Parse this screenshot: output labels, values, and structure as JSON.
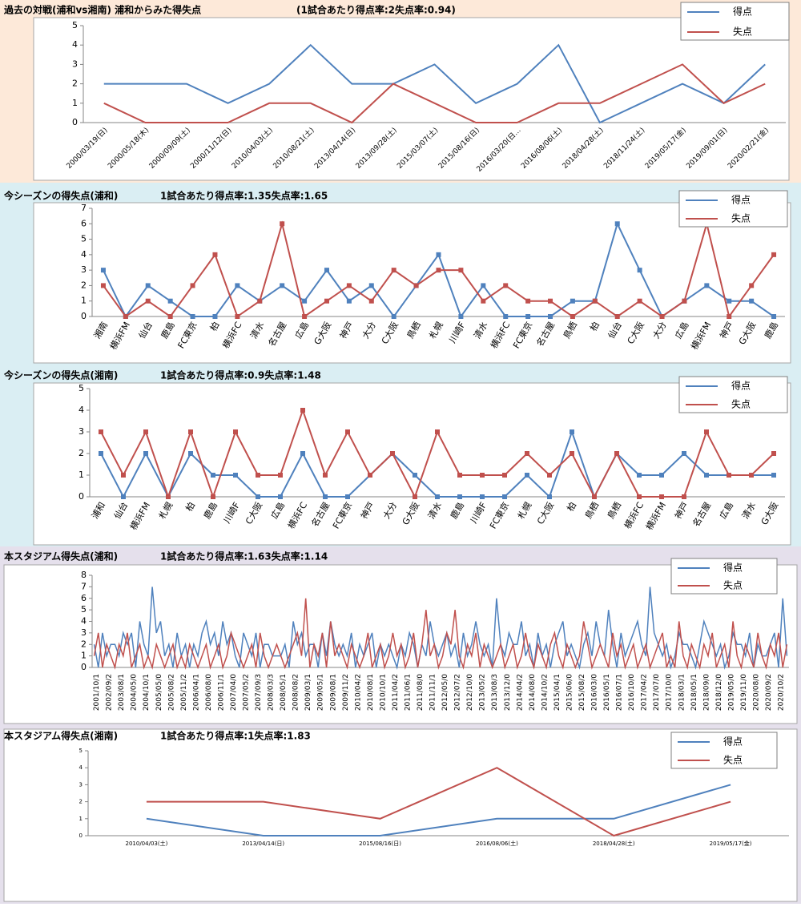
{
  "chart_data": [
    {
      "type": "line",
      "title": "過去の対戦(浦和vs湘南) 浦和からみた得失点",
      "subtitle": "(1試合あたり得点率:2失点率:0.94)",
      "categories": [
        "2000/03/19(日)",
        "2000/05/18(木)",
        "2000/09/09(土)",
        "2000/11/12(日)",
        "2010/04/03(土)",
        "2010/08/21(土)",
        "2013/04/14(日)",
        "2013/09/28(土)",
        "2015/03/07(土)",
        "2015/08/16(日)",
        "2016/03/20(日…",
        "2016/08/06(土)",
        "2018/04/28(土)",
        "2018/11/24(土)",
        "2019/05/17(金)",
        "2019/09/01(日)",
        "2020/02/21(金)"
      ],
      "series": [
        {
          "name": "得点",
          "color": "#4f81bd",
          "values": [
            2,
            2,
            2,
            1,
            2,
            4,
            2,
            2,
            3,
            1,
            2,
            4,
            0,
            1,
            2,
            1,
            3
          ]
        },
        {
          "name": "失点",
          "color": "#c0504d",
          "values": [
            1,
            0,
            0,
            0,
            1,
            1,
            0,
            2,
            1,
            0,
            0,
            1,
            1,
            2,
            3,
            1,
            2
          ]
        }
      ],
      "ylim": [
        0,
        5
      ],
      "yticks": [
        0,
        1,
        2,
        3,
        4,
        5
      ],
      "markers": false
    },
    {
      "type": "line",
      "title": "今シーズンの得失点(浦和)",
      "subtitle": "1試合あたり得点率:1.35失点率:1.65",
      "categories": [
        "湘南",
        "横浜FM",
        "仙台",
        "鹿島",
        "FC東京",
        "柏",
        "横浜FC",
        "清水",
        "名古屋",
        "広島",
        "G大阪",
        "神戸",
        "大分",
        "C大阪",
        "鳥栖",
        "札幌",
        "川崎F",
        "清水",
        "横浜FC",
        "FC東京",
        "名古屋",
        "鳥栖",
        "柏",
        "仙台",
        "C大阪",
        "大分",
        "広島",
        "横浜FM",
        "神戸",
        "G大阪",
        "鹿島"
      ],
      "series": [
        {
          "name": "得点",
          "color": "#4f81bd",
          "values": [
            3,
            0,
            2,
            1,
            0,
            0,
            2,
            1,
            2,
            1,
            3,
            1,
            2,
            0,
            2,
            4,
            0,
            2,
            0,
            0,
            0,
            1,
            1,
            6,
            3,
            0,
            1,
            2,
            1,
            1,
            0
          ]
        },
        {
          "name": "失点",
          "color": "#c0504d",
          "values": [
            2,
            0,
            1,
            0,
            2,
            4,
            0,
            1,
            6,
            0,
            1,
            2,
            1,
            3,
            2,
            3,
            3,
            1,
            2,
            1,
            1,
            0,
            1,
            0,
            1,
            0,
            1,
            6,
            0,
            2,
            4
          ]
        }
      ],
      "ylim": [
        0,
        7
      ],
      "yticks": [
        0,
        1,
        2,
        3,
        4,
        5,
        6,
        7
      ],
      "markers": true
    },
    {
      "type": "line",
      "title": "今シーズンの得失点(湘南)",
      "subtitle": "1試合あたり得点率:0.9失点率:1.48",
      "categories": [
        "浦和",
        "仙台",
        "横浜FM",
        "札幌",
        "柏",
        "鹿島",
        "川崎F",
        "C大阪",
        "広島",
        "横浜FC",
        "名古屋",
        "FC東京",
        "神戸",
        "大分",
        "G大阪",
        "清水",
        "鹿島",
        "川崎F",
        "FC東京",
        "札幌",
        "C大阪",
        "柏",
        "鳥栖",
        "鳥栖",
        "横浜FC",
        "横浜FM",
        "神戸",
        "名古屋",
        "広島",
        "清水",
        "G大阪"
      ],
      "series": [
        {
          "name": "得点",
          "color": "#4f81bd",
          "values": [
            2,
            0,
            2,
            0,
            2,
            1,
            1,
            0,
            0,
            2,
            0,
            0,
            1,
            2,
            1,
            0,
            0,
            0,
            0,
            1,
            0,
            3,
            0,
            2,
            1,
            1,
            2,
            1,
            1,
            1,
            1
          ]
        },
        {
          "name": "失点",
          "color": "#c0504d",
          "values": [
            3,
            1,
            3,
            0,
            3,
            0,
            3,
            1,
            1,
            4,
            1,
            3,
            1,
            2,
            0,
            3,
            1,
            1,
            1,
            2,
            1,
            2,
            0,
            2,
            0,
            0,
            0,
            3,
            1,
            1,
            2
          ]
        }
      ],
      "ylim": [
        0,
        5
      ],
      "yticks": [
        0,
        1,
        2,
        3,
        4,
        5
      ],
      "markers": true
    },
    {
      "type": "line",
      "title": "本スタジアム得失点(浦和)",
      "subtitle": "1試合あたり得点率:1.63失点率:1.14",
      "categories": [
        "2001/10/1",
        null,
        null,
        "2002/09/2",
        null,
        null,
        "2003/08/1",
        null,
        null,
        "2004/05/0",
        null,
        null,
        "2004/10/1",
        null,
        null,
        "2005/05/0",
        null,
        null,
        "2005/08/2",
        null,
        null,
        "2005/11/2",
        null,
        null,
        "2006/04/1",
        null,
        null,
        "2006/08/0",
        null,
        null,
        "2006/11/1",
        null,
        null,
        "2007/04/0",
        null,
        null,
        "2007/05/2",
        null,
        null,
        "2007/09/3",
        null,
        null,
        "2008/03/3",
        null,
        null,
        "2008/05/1",
        null,
        null,
        "2008/08/2",
        null,
        null,
        "2009/03/1",
        null,
        null,
        "2009/05/1",
        null,
        null,
        "2009/08/1",
        null,
        null,
        "2009/11/2",
        null,
        null,
        "2010/04/2",
        null,
        null,
        "2010/08/1",
        null,
        null,
        "2010/10/1",
        null,
        null,
        "2011/04/2",
        null,
        null,
        "2011/06/1",
        null,
        null,
        "2011/08/0",
        null,
        null,
        "2011/11/1",
        null,
        null,
        "2012/05/0",
        null,
        null,
        "2012/07/2",
        null,
        null,
        "2012/10/0",
        null,
        null,
        "2013/05/2",
        null,
        null,
        "2013/08/3",
        null,
        null,
        "2013/12/0",
        null,
        null,
        "2014/04/2",
        null,
        null,
        "2014/08/0",
        null,
        null,
        "2014/10/2",
        null,
        null,
        "2015/04/1",
        null,
        null,
        "2015/06/0",
        null,
        null,
        "2015/08/2",
        null,
        null,
        "2016/03/0",
        null,
        null,
        "2016/05/1",
        null,
        null,
        "2016/07/1",
        null,
        null,
        "2016/10/0",
        null,
        null,
        "2017/04/2",
        null,
        null,
        "2017/07/0",
        null,
        null,
        "2017/10/0",
        null,
        null,
        "2018/03/1",
        null,
        null,
        "2018/05/1",
        null,
        null,
        "2018/09/0",
        null,
        null,
        "2018/12/0",
        null,
        null,
        "2019/05/0",
        null,
        null,
        "2019/11/0",
        null,
        null,
        "2020/08/0",
        null,
        null,
        "2020/09/2",
        null,
        null,
        "2020/10/2",
        null,
        null
      ],
      "series": [
        {
          "name": "得点",
          "color": "#4f81bd",
          "values": [
            2,
            0,
            3,
            1,
            2,
            2,
            1,
            3,
            2,
            3,
            0,
            4,
            2,
            1,
            7,
            3,
            4,
            1,
            2,
            0,
            3,
            1,
            2,
            0,
            2,
            1,
            3,
            4,
            2,
            3,
            1,
            4,
            2,
            3,
            1,
            0,
            3,
            2,
            1,
            3,
            0,
            2,
            2,
            1,
            1,
            1,
            2,
            0,
            4,
            2,
            3,
            1,
            2,
            2,
            0,
            3,
            1,
            4,
            2,
            1,
            2,
            1,
            3,
            0,
            2,
            1,
            2,
            3,
            0,
            2,
            1,
            2,
            1,
            0,
            2,
            1,
            3,
            2,
            0,
            2,
            1,
            4,
            2,
            1,
            2,
            3,
            1,
            2,
            0,
            3,
            1,
            2,
            4,
            2,
            1,
            2,
            0,
            6,
            2,
            1,
            3,
            2,
            2,
            4,
            1,
            2,
            0,
            3,
            1,
            2,
            0,
            2,
            3,
            4,
            1,
            2,
            1,
            0,
            2,
            3,
            1,
            4,
            2,
            1,
            5,
            2,
            0,
            3,
            1,
            2,
            3,
            4,
            2,
            1,
            7,
            3,
            2,
            1,
            2,
            0,
            1,
            3,
            2,
            2,
            1,
            0,
            2,
            4,
            3,
            2,
            1,
            2,
            0,
            1,
            3,
            2,
            2,
            1,
            3,
            0,
            2,
            1,
            1,
            2,
            3,
            0,
            6,
            1
          ]
        },
        {
          "name": "失点",
          "color": "#c0504d",
          "values": [
            1,
            3,
            0,
            2,
            1,
            0,
            2,
            1,
            3,
            0,
            1,
            2,
            0,
            1,
            0,
            2,
            1,
            0,
            1,
            2,
            0,
            1,
            0,
            2,
            1,
            0,
            1,
            2,
            0,
            1,
            2,
            0,
            1,
            3,
            2,
            1,
            0,
            1,
            2,
            0,
            3,
            1,
            0,
            1,
            2,
            1,
            0,
            1,
            2,
            3,
            1,
            6,
            0,
            2,
            1,
            3,
            0,
            4,
            1,
            2,
            1,
            0,
            2,
            1,
            0,
            1,
            3,
            0,
            1,
            2,
            0,
            1,
            3,
            1,
            2,
            0,
            1,
            3,
            0,
            2,
            5,
            1,
            2,
            0,
            1,
            3,
            2,
            5,
            1,
            0,
            2,
            1,
            3,
            0,
            2,
            1,
            0,
            1,
            2,
            0,
            1,
            2,
            0,
            1,
            3,
            1,
            0,
            2,
            1,
            0,
            2,
            3,
            1,
            0,
            2,
            1,
            0,
            1,
            4,
            2,
            0,
            1,
            2,
            1,
            0,
            3,
            1,
            2,
            0,
            1,
            2,
            0,
            1,
            2,
            0,
            1,
            2,
            3,
            0,
            1,
            0,
            4,
            1,
            0,
            2,
            1,
            0,
            2,
            1,
            3,
            0,
            1,
            2,
            0,
            4,
            1,
            0,
            2,
            1,
            0,
            3,
            1,
            0,
            2,
            1,
            3,
            0,
            2
          ]
        }
      ],
      "ylim": [
        0,
        8
      ],
      "yticks": [
        0,
        1,
        2,
        3,
        4,
        5,
        6,
        7,
        8
      ],
      "markers": false
    },
    {
      "type": "line",
      "title": "本スタジアム得失点(湘南)",
      "subtitle": "1試合あたり得点率:1失点率:1.83",
      "categories": [
        "2010/04/03(土)",
        "2013/04/14(日)",
        "2015/08/16(日)",
        "2016/08/06(土)",
        "2018/04/28(土)",
        "2019/05/17(金)"
      ],
      "series": [
        {
          "name": "得点",
          "color": "#4f81bd",
          "values": [
            1,
            0,
            0,
            1,
            1,
            3
          ]
        },
        {
          "name": "失点",
          "color": "#c0504d",
          "values": [
            2,
            2,
            1,
            4,
            0,
            2
          ]
        }
      ],
      "ylim": [
        0,
        5
      ],
      "yticks": [
        0,
        1,
        2,
        3,
        4,
        5
      ],
      "markers": false
    }
  ]
}
